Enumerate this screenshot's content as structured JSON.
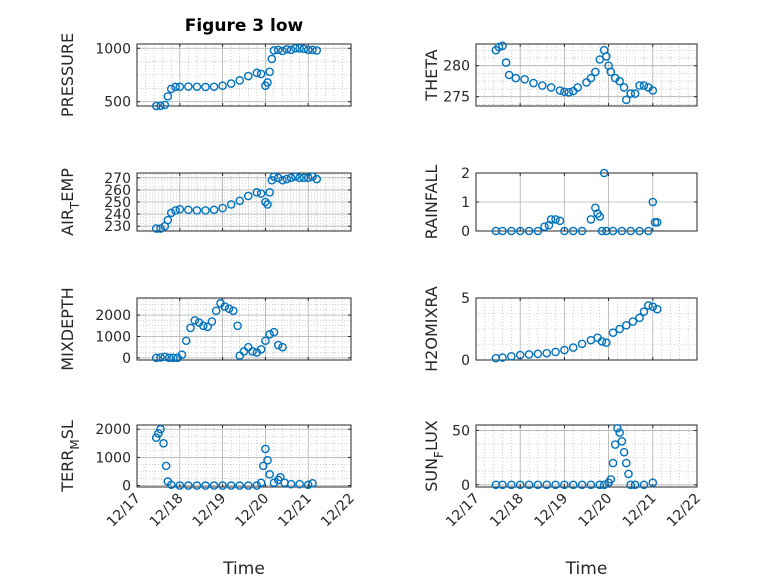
{
  "title": "Figure 3 low",
  "colors": {
    "marker": "#0072BD",
    "axis": "#262626",
    "grid": "#b0b0b0"
  },
  "chart_data": [
    {
      "type": "scatter",
      "ylabel": "PRESSURE",
      "ylim": [
        460,
        1040
      ],
      "yticks": [
        500,
        1000
      ],
      "ytick_labels": [
        "500",
        "1000"
      ],
      "xlim": [
        0,
        5
      ],
      "grid": true,
      "minor_grid": true,
      "series": [
        {
          "points": [
            [
              0.45,
              460
            ],
            [
              0.55,
              462
            ],
            [
              0.65,
              470
            ],
            [
              0.72,
              550
            ],
            [
              0.8,
              620
            ],
            [
              0.9,
              638
            ],
            [
              1.0,
              640
            ],
            [
              1.2,
              642
            ],
            [
              1.4,
              640
            ],
            [
              1.6,
              638
            ],
            [
              1.8,
              640
            ],
            [
              2.0,
              650
            ],
            [
              2.2,
              670
            ],
            [
              2.4,
              700
            ],
            [
              2.6,
              740
            ],
            [
              2.8,
              770
            ],
            [
              2.9,
              760
            ],
            [
              3.0,
              650
            ],
            [
              3.05,
              680
            ],
            [
              3.1,
              780
            ],
            [
              3.15,
              900
            ],
            [
              3.2,
              980
            ],
            [
              3.3,
              985
            ],
            [
              3.4,
              975
            ],
            [
              3.5,
              990
            ],
            [
              3.6,
              985
            ],
            [
              3.7,
              1000
            ],
            [
              3.8,
              1000
            ],
            [
              3.9,
              995
            ],
            [
              4.0,
              985
            ],
            [
              4.1,
              985
            ],
            [
              4.2,
              980
            ]
          ]
        }
      ]
    },
    {
      "type": "scatter",
      "ylabel": "THETA",
      "ylim": [
        273.5,
        283.5
      ],
      "yticks": [
        275,
        280
      ],
      "ytick_labels": [
        "275",
        "280"
      ],
      "xlim": [
        0,
        5
      ],
      "grid": true,
      "minor_grid": true,
      "series": [
        {
          "points": [
            [
              0.45,
              282.5
            ],
            [
              0.52,
              283
            ],
            [
              0.6,
              283.2
            ],
            [
              0.68,
              280.5
            ],
            [
              0.75,
              278.5
            ],
            [
              0.9,
              278
            ],
            [
              1.1,
              277.8
            ],
            [
              1.3,
              277.2
            ],
            [
              1.5,
              276.8
            ],
            [
              1.7,
              276.5
            ],
            [
              1.9,
              276
            ],
            [
              2.0,
              275.8
            ],
            [
              2.1,
              275.7
            ],
            [
              2.2,
              275.9
            ],
            [
              2.3,
              276.5
            ],
            [
              2.5,
              277.3
            ],
            [
              2.6,
              278
            ],
            [
              2.7,
              279
            ],
            [
              2.8,
              281
            ],
            [
              2.9,
              282.5
            ],
            [
              2.95,
              281.5
            ],
            [
              3.0,
              280
            ],
            [
              3.05,
              279
            ],
            [
              3.15,
              278
            ],
            [
              3.25,
              277.5
            ],
            [
              3.35,
              276.5
            ],
            [
              3.4,
              274.5
            ],
            [
              3.5,
              275.5
            ],
            [
              3.6,
              275.5
            ],
            [
              3.7,
              276.8
            ],
            [
              3.8,
              276.8
            ],
            [
              3.9,
              276.5
            ],
            [
              4.0,
              276
            ]
          ]
        }
      ]
    },
    {
      "type": "scatter",
      "ylabel": "AIR_TEMP",
      "ylim": [
        226,
        274
      ],
      "yticks": [
        230,
        240,
        250,
        260,
        270
      ],
      "ytick_labels": [
        "230",
        "240",
        "250",
        "260",
        "270"
      ],
      "xlim": [
        0,
        5
      ],
      "grid": true,
      "minor_grid": true,
      "series": [
        {
          "points": [
            [
              0.45,
              228
            ],
            [
              0.55,
              228
            ],
            [
              0.65,
              230
            ],
            [
              0.72,
              235
            ],
            [
              0.8,
              241
            ],
            [
              0.9,
              243
            ],
            [
              1.0,
              244
            ],
            [
              1.2,
              243.5
            ],
            [
              1.4,
              243
            ],
            [
              1.6,
              243
            ],
            [
              1.8,
              243.5
            ],
            [
              2.0,
              245
            ],
            [
              2.2,
              248
            ],
            [
              2.4,
              251
            ],
            [
              2.6,
              255
            ],
            [
              2.8,
              258
            ],
            [
              2.9,
              257
            ],
            [
              3.0,
              250
            ],
            [
              3.05,
              248
            ],
            [
              3.1,
              258
            ],
            [
              3.15,
              268
            ],
            [
              3.2,
              271
            ],
            [
              3.3,
              270
            ],
            [
              3.4,
              268
            ],
            [
              3.5,
              269
            ],
            [
              3.6,
              270
            ],
            [
              3.7,
              271
            ],
            [
              3.8,
              270
            ],
            [
              3.9,
              270
            ],
            [
              4.0,
              270
            ],
            [
              4.1,
              271
            ],
            [
              4.2,
              269
            ]
          ]
        }
      ]
    },
    {
      "type": "scatter",
      "ylabel": "RAINFALL",
      "ylim": [
        0,
        2
      ],
      "yticks": [
        0,
        1,
        2
      ],
      "ytick_labels": [
        "0",
        "1",
        "2"
      ],
      "xlim": [
        0,
        5
      ],
      "grid": true,
      "minor_grid": false,
      "series": [
        {
          "points": [
            [
              0.45,
              0
            ],
            [
              0.6,
              0
            ],
            [
              0.8,
              0
            ],
            [
              1.0,
              0
            ],
            [
              1.2,
              0
            ],
            [
              1.4,
              0
            ],
            [
              1.55,
              0.15
            ],
            [
              1.65,
              0.2
            ],
            [
              1.7,
              0.4
            ],
            [
              1.8,
              0.4
            ],
            [
              1.9,
              0.35
            ],
            [
              2.0,
              0
            ],
            [
              2.2,
              0
            ],
            [
              2.4,
              0
            ],
            [
              2.6,
              0.4
            ],
            [
              2.7,
              0.8
            ],
            [
              2.75,
              0.6
            ],
            [
              2.8,
              0.5
            ],
            [
              2.85,
              0
            ],
            [
              2.9,
              2
            ],
            [
              2.95,
              0
            ],
            [
              3.1,
              0
            ],
            [
              3.3,
              0
            ],
            [
              3.5,
              0
            ],
            [
              3.7,
              0
            ],
            [
              3.9,
              0
            ],
            [
              4.0,
              1
            ],
            [
              4.05,
              0.3
            ],
            [
              4.1,
              0.3
            ]
          ]
        }
      ]
    },
    {
      "type": "scatter",
      "ylabel": "MIXDEPTH",
      "ylim": [
        -100,
        2800
      ],
      "yticks": [
        0,
        1000,
        2000
      ],
      "ytick_labels": [
        "0",
        "1000",
        "2000"
      ],
      "xlim": [
        0,
        5
      ],
      "grid": true,
      "minor_grid": true,
      "series": [
        {
          "points": [
            [
              0.45,
              0
            ],
            [
              0.55,
              20
            ],
            [
              0.65,
              50
            ],
            [
              0.75,
              0
            ],
            [
              0.85,
              0
            ],
            [
              0.95,
              0
            ],
            [
              1.05,
              150
            ],
            [
              1.15,
              800
            ],
            [
              1.25,
              1400
            ],
            [
              1.35,
              1750
            ],
            [
              1.45,
              1650
            ],
            [
              1.55,
              1500
            ],
            [
              1.65,
              1450
            ],
            [
              1.75,
              1700
            ],
            [
              1.85,
              2200
            ],
            [
              1.95,
              2550
            ],
            [
              2.05,
              2400
            ],
            [
              2.15,
              2300
            ],
            [
              2.25,
              2200
            ],
            [
              2.35,
              1500
            ],
            [
              2.4,
              100
            ],
            [
              2.5,
              300
            ],
            [
              2.6,
              500
            ],
            [
              2.7,
              300
            ],
            [
              2.8,
              250
            ],
            [
              2.9,
              400
            ],
            [
              3.0,
              800
            ],
            [
              3.1,
              1100
            ],
            [
              3.2,
              1200
            ],
            [
              3.3,
              600
            ],
            [
              3.4,
              500
            ]
          ]
        }
      ]
    },
    {
      "type": "scatter",
      "ylabel": "H2OMIXRA",
      "ylim": [
        0,
        5
      ],
      "yticks": [
        0,
        5
      ],
      "ytick_labels": [
        "0",
        "5"
      ],
      "xlim": [
        0,
        5
      ],
      "grid": true,
      "minor_grid": true,
      "series": [
        {
          "points": [
            [
              0.45,
              0.15
            ],
            [
              0.6,
              0.2
            ],
            [
              0.8,
              0.3
            ],
            [
              1.0,
              0.4
            ],
            [
              1.2,
              0.45
            ],
            [
              1.4,
              0.5
            ],
            [
              1.6,
              0.55
            ],
            [
              1.8,
              0.65
            ],
            [
              2.0,
              0.8
            ],
            [
              2.2,
              1.0
            ],
            [
              2.4,
              1.3
            ],
            [
              2.6,
              1.6
            ],
            [
              2.75,
              1.8
            ],
            [
              2.85,
              1.5
            ],
            [
              2.95,
              1.4
            ],
            [
              3.1,
              2.2
            ],
            [
              3.25,
              2.5
            ],
            [
              3.4,
              2.8
            ],
            [
              3.55,
              3.1
            ],
            [
              3.7,
              3.4
            ],
            [
              3.8,
              3.9
            ],
            [
              3.9,
              4.4
            ],
            [
              4.0,
              4.3
            ],
            [
              4.1,
              4.1
            ]
          ]
        }
      ]
    },
    {
      "type": "scatter",
      "ylabel": "TERR_MSL",
      "ylim": [
        -50,
        2150
      ],
      "yticks": [
        0,
        1000,
        2000
      ],
      "ytick_labels": [
        "0",
        "1000",
        "2000"
      ],
      "xlim": [
        0,
        5
      ],
      "grid": true,
      "minor_grid": true,
      "series": [
        {
          "points": [
            [
              0.45,
              1700
            ],
            [
              0.5,
              1850
            ],
            [
              0.55,
              2000
            ],
            [
              0.62,
              1500
            ],
            [
              0.68,
              700
            ],
            [
              0.72,
              150
            ],
            [
              0.8,
              30
            ],
            [
              1.0,
              0
            ],
            [
              1.2,
              0
            ],
            [
              1.4,
              0
            ],
            [
              1.6,
              0
            ],
            [
              1.8,
              0
            ],
            [
              2.0,
              0
            ],
            [
              2.2,
              0
            ],
            [
              2.4,
              0
            ],
            [
              2.6,
              0
            ],
            [
              2.8,
              0
            ],
            [
              2.9,
              100
            ],
            [
              2.95,
              700
            ],
            [
              3.0,
              1300
            ],
            [
              3.05,
              900
            ],
            [
              3.1,
              400
            ],
            [
              3.2,
              100
            ],
            [
              3.3,
              200
            ],
            [
              3.35,
              300
            ],
            [
              3.45,
              100
            ],
            [
              3.6,
              50
            ],
            [
              3.8,
              50
            ],
            [
              4.0,
              30
            ],
            [
              4.1,
              80
            ]
          ]
        }
      ]
    },
    {
      "type": "scatter",
      "ylabel": "SUN_FLUX",
      "ylim": [
        -2,
        55
      ],
      "yticks": [
        0,
        50
      ],
      "ytick_labels": [
        "0",
        "50"
      ],
      "xlim": [
        0,
        5
      ],
      "grid": true,
      "minor_grid": true,
      "series": [
        {
          "points": [
            [
              0.45,
              0
            ],
            [
              0.6,
              0
            ],
            [
              0.8,
              0
            ],
            [
              1.0,
              0
            ],
            [
              1.2,
              0
            ],
            [
              1.4,
              0
            ],
            [
              1.6,
              0
            ],
            [
              1.8,
              0
            ],
            [
              2.0,
              0
            ],
            [
              2.2,
              0
            ],
            [
              2.4,
              0
            ],
            [
              2.6,
              0
            ],
            [
              2.8,
              0
            ],
            [
              2.9,
              0
            ],
            [
              3.0,
              2
            ],
            [
              3.05,
              5
            ],
            [
              3.1,
              20
            ],
            [
              3.15,
              37
            ],
            [
              3.2,
              52
            ],
            [
              3.25,
              48
            ],
            [
              3.3,
              40
            ],
            [
              3.35,
              30
            ],
            [
              3.4,
              20
            ],
            [
              3.45,
              10
            ],
            [
              3.5,
              0
            ],
            [
              3.6,
              0
            ],
            [
              3.8,
              0
            ],
            [
              4.0,
              2
            ]
          ]
        }
      ]
    }
  ],
  "xaxis": {
    "xlabel": "Time",
    "ticks": [
      0,
      1,
      2,
      3,
      4,
      5
    ],
    "tick_labels": [
      "12/17",
      "12/18",
      "12/19",
      "12/20",
      "12/21",
      "12/22"
    ]
  }
}
